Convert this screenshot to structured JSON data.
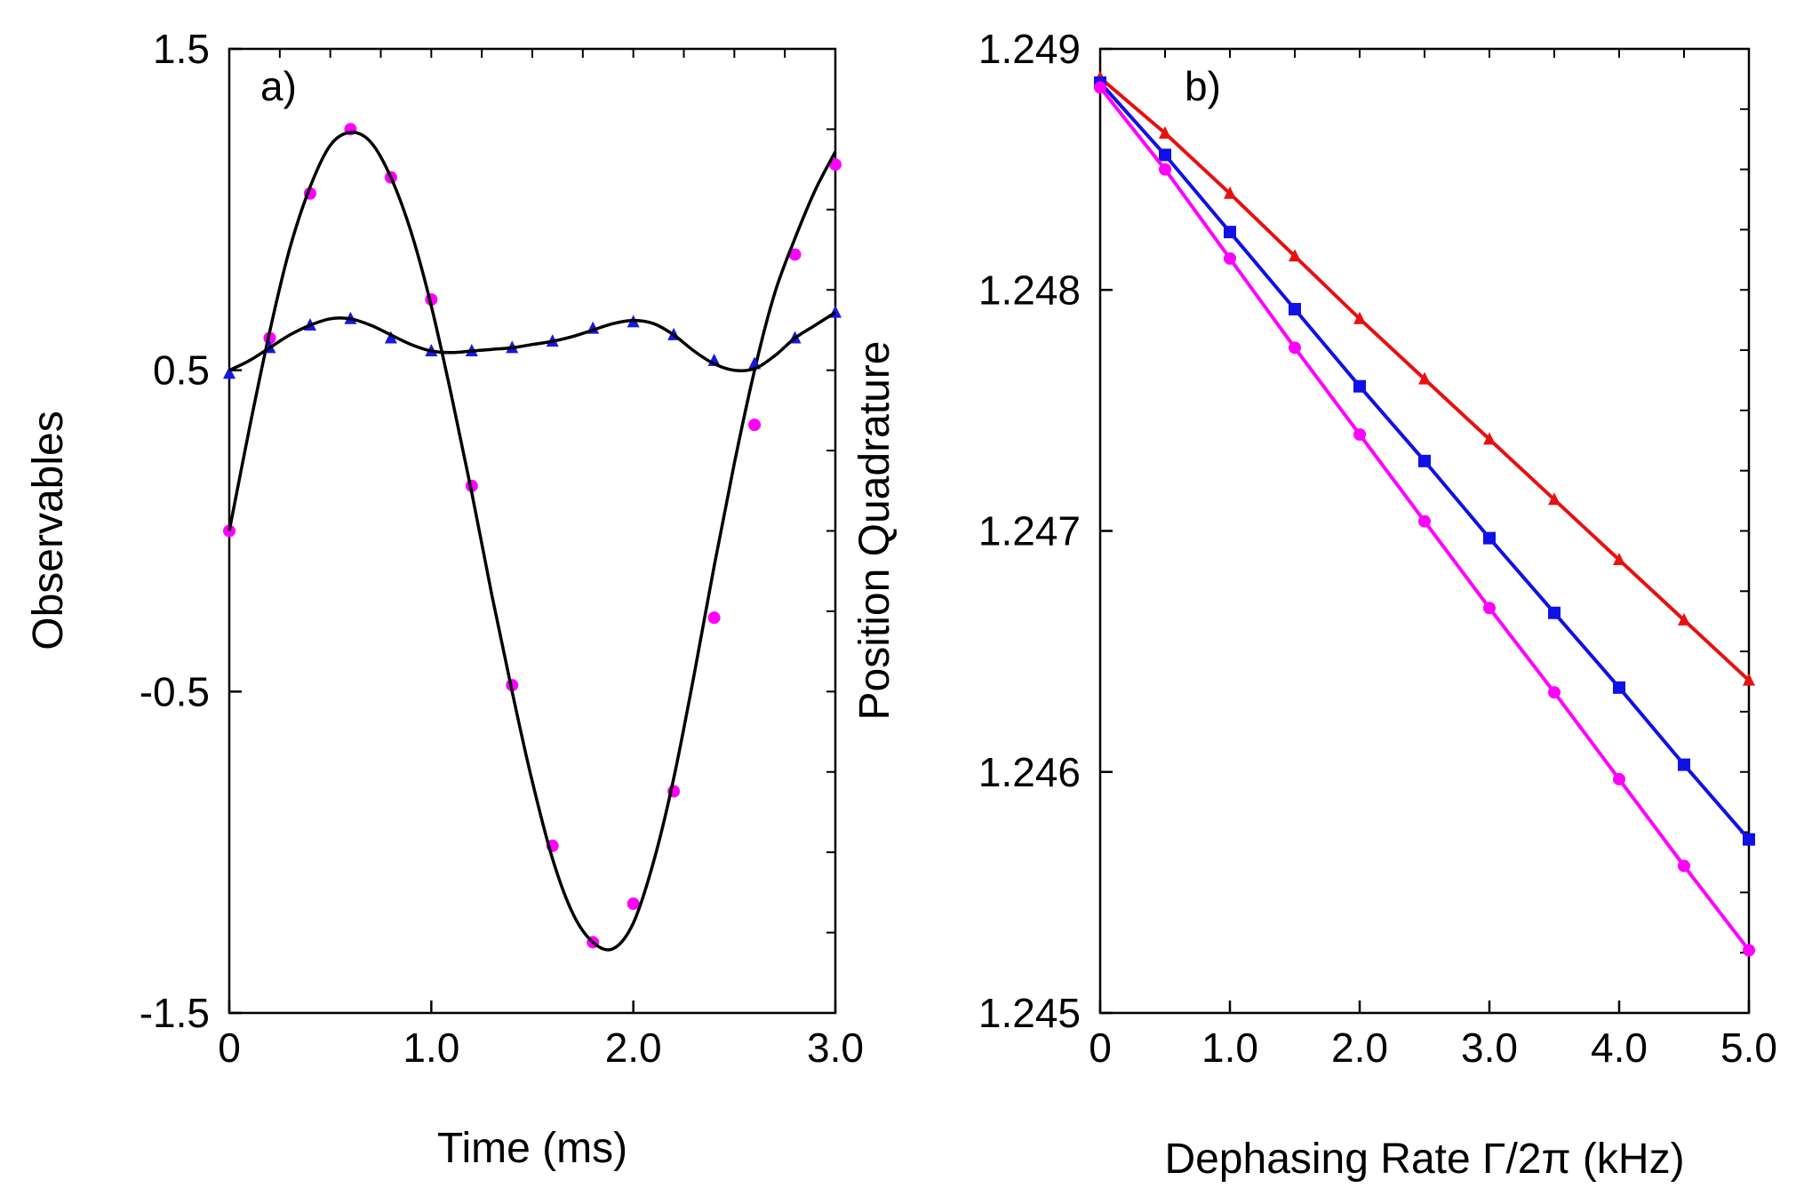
{
  "chart_data": [
    {
      "type": "line",
      "panel_label": "a)",
      "xlabel": "Time (ms)",
      "ylabel": "Observables",
      "xlim": [
        0,
        3.0
      ],
      "ylim": [
        -1.5,
        1.5
      ],
      "x_ticks": [
        {
          "value": 0,
          "label": "0"
        },
        {
          "value": 1.0,
          "label": "1.0"
        },
        {
          "value": 2.0,
          "label": "2.0"
        },
        {
          "value": 3.0,
          "label": "3.0"
        }
      ],
      "y_ticks": [
        {
          "value": 1.5,
          "label": "1.5"
        },
        {
          "value": 0.5,
          "label": "0.5"
        },
        {
          "value": -0.5,
          "label": "-0.5"
        },
        {
          "value": -1.5,
          "label": "-1.5"
        }
      ],
      "series": [
        {
          "name": "oscillating observable (markers)",
          "color": "#ff00ff",
          "marker": "circle",
          "x": [
            0,
            0.2,
            0.4,
            0.6,
            0.8,
            1.0,
            1.2,
            1.4,
            1.6,
            1.8,
            2.0,
            2.2,
            2.4,
            2.6,
            2.8,
            3.0
          ],
          "y": [
            0.0,
            0.6,
            1.05,
            1.25,
            1.1,
            0.72,
            0.14,
            -0.48,
            -0.98,
            -1.28,
            -1.16,
            -0.81,
            -0.27,
            0.33,
            0.86,
            1.14
          ]
        },
        {
          "name": "oscillating observable (curve)",
          "color": "#000000",
          "style": "solid",
          "x": [
            0,
            0.1,
            0.2,
            0.3,
            0.4,
            0.5,
            0.6,
            0.7,
            0.8,
            0.9,
            1.0,
            1.1,
            1.2,
            1.3,
            1.4,
            1.5,
            1.6,
            1.7,
            1.8,
            1.9,
            2.0,
            2.1,
            2.2,
            2.3,
            2.4,
            2.5,
            2.6,
            2.7,
            2.8,
            2.9,
            3.0
          ],
          "y": [
            0.0,
            0.32,
            0.62,
            0.88,
            1.07,
            1.2,
            1.24,
            1.21,
            1.1,
            0.93,
            0.7,
            0.42,
            0.12,
            -0.2,
            -0.5,
            -0.78,
            -1.02,
            -1.19,
            -1.28,
            -1.3,
            -1.22,
            -1.03,
            -0.77,
            -0.45,
            -0.11,
            0.21,
            0.5,
            0.74,
            0.91,
            1.06,
            1.18
          ]
        },
        {
          "name": "slow observable (markers)",
          "color": "#1818e0",
          "marker": "triangle",
          "x": [
            0,
            0.2,
            0.4,
            0.6,
            0.8,
            1.0,
            1.2,
            1.4,
            1.6,
            1.8,
            2.0,
            2.2,
            2.4,
            2.6,
            2.8,
            3.0
          ],
          "y": [
            0.49,
            0.57,
            0.64,
            0.66,
            0.6,
            0.56,
            0.56,
            0.57,
            0.59,
            0.63,
            0.65,
            0.61,
            0.53,
            0.52,
            0.6,
            0.68
          ]
        },
        {
          "name": "slow observable (curve)",
          "color": "#000000",
          "style": "solid",
          "x": [
            0,
            0.1,
            0.2,
            0.3,
            0.4,
            0.5,
            0.6,
            0.7,
            0.8,
            0.9,
            1.0,
            1.1,
            1.2,
            1.3,
            1.4,
            1.5,
            1.6,
            1.7,
            1.8,
            1.9,
            2.0,
            2.1,
            2.2,
            2.3,
            2.4,
            2.5,
            2.6,
            2.7,
            2.8,
            2.9,
            3.0
          ],
          "y": [
            0.5,
            0.53,
            0.57,
            0.61,
            0.64,
            0.66,
            0.66,
            0.64,
            0.61,
            0.58,
            0.56,
            0.555,
            0.56,
            0.565,
            0.57,
            0.58,
            0.59,
            0.605,
            0.625,
            0.645,
            0.655,
            0.645,
            0.61,
            0.56,
            0.52,
            0.5,
            0.505,
            0.545,
            0.6,
            0.64,
            0.68
          ]
        }
      ]
    },
    {
      "type": "line",
      "panel_label": "b)",
      "xlabel": "Dephasing Rate Γ/2π (kHz)",
      "ylabel": "Position Quadrature",
      "xlim": [
        0,
        5.0
      ],
      "ylim": [
        1.245,
        1.249
      ],
      "x_ticks": [
        {
          "value": 0,
          "label": "0"
        },
        {
          "value": 1.0,
          "label": "1.0"
        },
        {
          "value": 2.0,
          "label": "2.0"
        },
        {
          "value": 3.0,
          "label": "3.0"
        },
        {
          "value": 4.0,
          "label": "4.0"
        },
        {
          "value": 5.0,
          "label": "5.0"
        }
      ],
      "y_ticks": [
        {
          "value": 1.249,
          "label": "1.249"
        },
        {
          "value": 1.248,
          "label": "1.248"
        },
        {
          "value": 1.247,
          "label": "1.247"
        },
        {
          "value": 1.246,
          "label": "1.246"
        },
        {
          "value": 1.245,
          "label": "1.245"
        }
      ],
      "series": [
        {
          "name": "triangles",
          "color": "#e81010",
          "marker": "triangle",
          "x": [
            0,
            0.5,
            1.0,
            1.5,
            2.0,
            2.5,
            3.0,
            3.5,
            4.0,
            4.5,
            5.0
          ],
          "y": [
            1.24888,
            1.24865,
            1.2484,
            1.24814,
            1.24788,
            1.24763,
            1.24738,
            1.24713,
            1.24688,
            1.24663,
            1.24638
          ]
        },
        {
          "name": "squares",
          "color": "#1010e8",
          "marker": "square",
          "x": [
            0,
            0.5,
            1.0,
            1.5,
            2.0,
            2.5,
            3.0,
            3.5,
            4.0,
            4.5,
            5.0
          ],
          "y": [
            1.24886,
            1.24856,
            1.24824,
            1.24792,
            1.2476,
            1.24729,
            1.24697,
            1.24666,
            1.24635,
            1.24603,
            1.24572
          ]
        },
        {
          "name": "circles",
          "color": "#ff00ff",
          "marker": "circle",
          "x": [
            0,
            0.5,
            1.0,
            1.5,
            2.0,
            2.5,
            3.0,
            3.5,
            4.0,
            4.5,
            5.0
          ],
          "y": [
            1.24884,
            1.2485,
            1.24813,
            1.24776,
            1.2474,
            1.24704,
            1.24668,
            1.24633,
            1.24597,
            1.24561,
            1.24526
          ]
        }
      ]
    }
  ]
}
